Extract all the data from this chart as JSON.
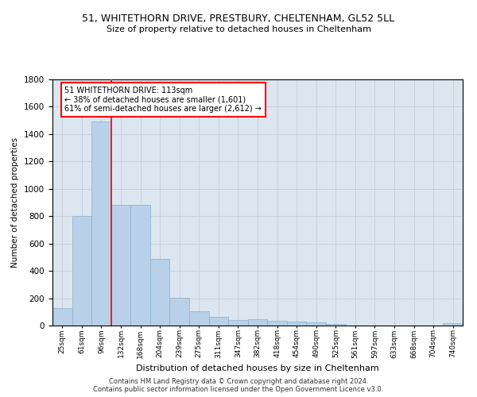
{
  "title_line1": "51, WHITETHORN DRIVE, PRESTBURY, CHELTENHAM, GL52 5LL",
  "title_line2": "Size of property relative to detached houses in Cheltenham",
  "xlabel": "Distribution of detached houses by size in Cheltenham",
  "ylabel": "Number of detached properties",
  "footer_line1": "Contains HM Land Registry data © Crown copyright and database right 2024.",
  "footer_line2": "Contains public sector information licensed under the Open Government Licence v3.0.",
  "bin_labels": [
    "25sqm",
    "61sqm",
    "96sqm",
    "132sqm",
    "168sqm",
    "204sqm",
    "239sqm",
    "275sqm",
    "311sqm",
    "347sqm",
    "382sqm",
    "418sqm",
    "454sqm",
    "490sqm",
    "525sqm",
    "561sqm",
    "597sqm",
    "633sqm",
    "668sqm",
    "704sqm",
    "740sqm"
  ],
  "bar_values": [
    125,
    800,
    1490,
    880,
    880,
    490,
    205,
    105,
    65,
    40,
    45,
    35,
    30,
    25,
    10,
    0,
    0,
    0,
    0,
    0,
    20
  ],
  "bar_color": "#b8d0e8",
  "bar_edge_color": "#8cb0cc",
  "grid_color": "#c8d0dc",
  "bg_color": "#dce6f0",
  "vline_color": "red",
  "annotation_text": "51 WHITETHORN DRIVE: 113sqm\n← 38% of detached houses are smaller (1,601)\n61% of semi-detached houses are larger (2,612) →",
  "annotation_box_color": "red",
  "ylim": [
    0,
    1800
  ],
  "yticks": [
    0,
    200,
    400,
    600,
    800,
    1000,
    1200,
    1400,
    1600,
    1800
  ],
  "vline_pos": 2.5
}
